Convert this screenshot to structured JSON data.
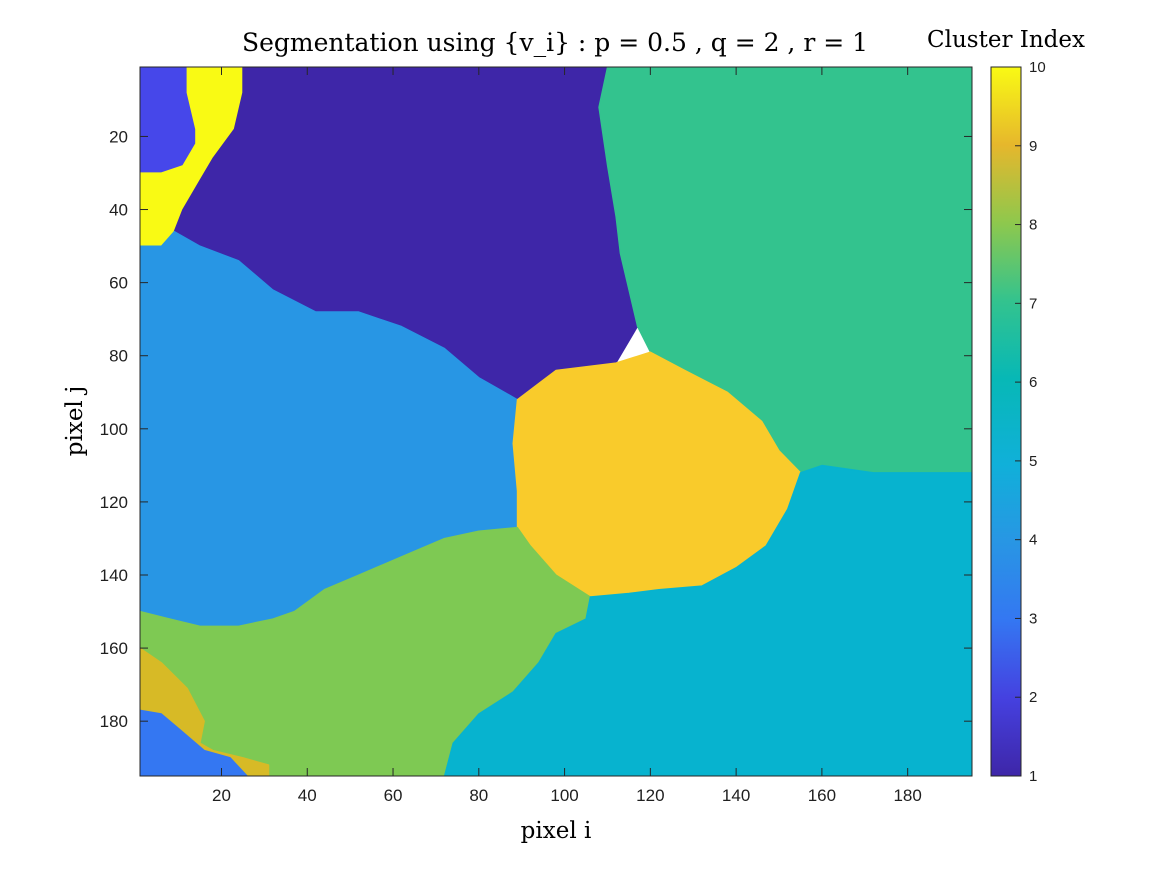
{
  "chart_data": {
    "type": "heatmap",
    "title": "Segmentation using {v_i} : p = 0.5 , q = 2 , r = 1",
    "xlabel": "pixel i",
    "ylabel": "pixel j",
    "xlim": [
      1,
      195
    ],
    "ylim": [
      1,
      195
    ],
    "y_direction": "reversed",
    "x_ticks": [
      20,
      40,
      60,
      80,
      100,
      120,
      140,
      160,
      180
    ],
    "y_ticks": [
      20,
      40,
      60,
      80,
      100,
      120,
      140,
      160,
      180
    ],
    "colorbar": {
      "label": "Cluster Index",
      "range": [
        1,
        10
      ],
      "ticks": [
        1,
        2,
        3,
        4,
        5,
        6,
        7,
        8,
        9,
        10
      ],
      "colormap": "parula"
    },
    "regions": [
      {
        "cluster": 2,
        "color": "#4647ea",
        "polygon": [
          [
            1,
            1
          ],
          [
            12,
            1
          ],
          [
            12,
            8
          ],
          [
            14,
            18
          ],
          [
            14,
            22
          ],
          [
            11,
            28
          ],
          [
            6,
            30
          ],
          [
            1,
            30
          ]
        ]
      },
      {
        "cluster": 10,
        "color": "#f9fa14",
        "polygon": [
          [
            12,
            1
          ],
          [
            25,
            1
          ],
          [
            25,
            8
          ],
          [
            23,
            18
          ],
          [
            18,
            26
          ],
          [
            15,
            32
          ],
          [
            11,
            40
          ],
          [
            9,
            46
          ],
          [
            6,
            50
          ],
          [
            1,
            50
          ],
          [
            1,
            30
          ],
          [
            6,
            30
          ],
          [
            11,
            28
          ],
          [
            14,
            22
          ],
          [
            14,
            18
          ],
          [
            12,
            8
          ]
        ]
      },
      {
        "cluster": 1,
        "color": "#3e26a8",
        "polygon": [
          [
            25,
            1
          ],
          [
            110,
            1
          ],
          [
            108,
            12
          ],
          [
            110,
            28
          ],
          [
            112,
            42
          ],
          [
            113,
            52
          ],
          [
            115,
            62
          ],
          [
            117,
            72
          ],
          [
            112,
            82
          ],
          [
            98,
            84
          ],
          [
            89,
            92
          ],
          [
            80,
            86
          ],
          [
            72,
            78
          ],
          [
            62,
            72
          ],
          [
            52,
            68
          ],
          [
            42,
            68
          ],
          [
            32,
            62
          ],
          [
            24,
            54
          ],
          [
            15,
            50
          ],
          [
            9,
            46
          ],
          [
            11,
            40
          ],
          [
            15,
            32
          ],
          [
            18,
            26
          ],
          [
            23,
            18
          ],
          [
            25,
            8
          ]
        ]
      },
      {
        "cluster": 6,
        "color": "#33c38e",
        "polygon": [
          [
            110,
            1
          ],
          [
            195,
            1
          ],
          [
            195,
            112
          ],
          [
            172,
            112
          ],
          [
            160,
            110
          ],
          [
            155,
            112
          ],
          [
            150,
            106
          ],
          [
            146,
            98
          ],
          [
            138,
            90
          ],
          [
            128,
            84
          ],
          [
            120,
            79
          ],
          [
            117,
            72
          ],
          [
            115,
            62
          ],
          [
            113,
            52
          ],
          [
            112,
            42
          ],
          [
            110,
            28
          ],
          [
            108,
            12
          ]
        ]
      },
      {
        "cluster": 4,
        "color": "#2896e4",
        "polygon": [
          [
            1,
            50
          ],
          [
            6,
            50
          ],
          [
            9,
            46
          ],
          [
            15,
            50
          ],
          [
            24,
            54
          ],
          [
            32,
            62
          ],
          [
            42,
            68
          ],
          [
            52,
            68
          ],
          [
            62,
            72
          ],
          [
            72,
            78
          ],
          [
            80,
            86
          ],
          [
            89,
            92
          ],
          [
            89,
            102
          ],
          [
            89,
            117
          ],
          [
            89,
            127
          ],
          [
            80,
            128
          ],
          [
            72,
            130
          ],
          [
            62,
            135
          ],
          [
            52,
            140
          ],
          [
            44,
            144
          ],
          [
            37,
            150
          ],
          [
            32,
            152
          ],
          [
            24,
            154
          ],
          [
            15,
            154
          ],
          [
            8,
            152
          ],
          [
            1,
            150
          ]
        ]
      },
      {
        "cluster": 9,
        "color": "#f9cb2b",
        "polygon": [
          [
            89,
            92
          ],
          [
            98,
            84
          ],
          [
            112,
            82
          ],
          [
            120,
            79
          ],
          [
            128,
            84
          ],
          [
            138,
            90
          ],
          [
            146,
            98
          ],
          [
            150,
            106
          ],
          [
            155,
            112
          ],
          [
            152,
            122
          ],
          [
            147,
            132
          ],
          [
            140,
            138
          ],
          [
            132,
            143
          ],
          [
            122,
            144
          ],
          [
            115,
            145
          ],
          [
            106,
            146
          ],
          [
            98,
            140
          ],
          [
            92,
            132
          ],
          [
            89,
            127
          ],
          [
            89,
            117
          ],
          [
            88,
            104
          ]
        ]
      },
      {
        "cluster": 7,
        "color": "#7ec953",
        "polygon": [
          [
            1,
            150
          ],
          [
            8,
            152
          ],
          [
            15,
            154
          ],
          [
            24,
            154
          ],
          [
            32,
            152
          ],
          [
            37,
            150
          ],
          [
            44,
            144
          ],
          [
            52,
            140
          ],
          [
            62,
            135
          ],
          [
            72,
            130
          ],
          [
            80,
            128
          ],
          [
            89,
            127
          ],
          [
            92,
            132
          ],
          [
            98,
            140
          ],
          [
            106,
            146
          ],
          [
            105,
            152
          ],
          [
            98,
            156
          ],
          [
            94,
            164
          ],
          [
            88,
            172
          ],
          [
            80,
            178
          ],
          [
            74,
            186
          ],
          [
            72,
            195
          ],
          [
            31,
            195
          ],
          [
            31,
            192
          ],
          [
            25,
            190
          ],
          [
            18,
            188
          ],
          [
            15,
            186
          ],
          [
            16,
            180
          ],
          [
            12,
            171
          ],
          [
            6,
            164
          ],
          [
            1,
            160
          ]
        ]
      },
      {
        "cluster": 5,
        "color": "#07b3cf",
        "polygon": [
          [
            195,
            112
          ],
          [
            195,
            195
          ],
          [
            72,
            195
          ],
          [
            74,
            186
          ],
          [
            80,
            178
          ],
          [
            88,
            172
          ],
          [
            94,
            164
          ],
          [
            98,
            156
          ],
          [
            105,
            152
          ],
          [
            106,
            146
          ],
          [
            115,
            145
          ],
          [
            122,
            144
          ],
          [
            132,
            143
          ],
          [
            140,
            138
          ],
          [
            147,
            132
          ],
          [
            152,
            122
          ],
          [
            155,
            112
          ],
          [
            160,
            110
          ],
          [
            172,
            112
          ]
        ]
      },
      {
        "cluster": 8,
        "color": "#d7ba26",
        "polygon": [
          [
            1,
            160
          ],
          [
            6,
            164
          ],
          [
            12,
            171
          ],
          [
            16,
            180
          ],
          [
            15,
            186
          ],
          [
            18,
            188
          ],
          [
            25,
            190
          ],
          [
            31,
            192
          ],
          [
            31,
            195
          ],
          [
            26,
            195
          ],
          [
            22,
            190
          ],
          [
            16,
            188
          ],
          [
            10,
            182
          ],
          [
            6,
            178
          ],
          [
            1,
            177
          ]
        ]
      },
      {
        "cluster": 3,
        "color": "#3477f2",
        "polygon": [
          [
            1,
            177
          ],
          [
            6,
            178
          ],
          [
            10,
            182
          ],
          [
            16,
            188
          ],
          [
            22,
            190
          ],
          [
            26,
            195
          ],
          [
            1,
            195
          ]
        ]
      }
    ]
  }
}
